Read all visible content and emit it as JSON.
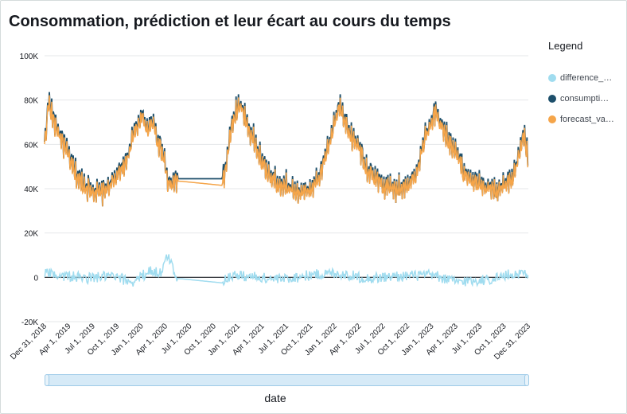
{
  "chart_data": {
    "type": "line",
    "title": "Consommation, prédiction et leur écart au cours du temps",
    "xlabel": "date",
    "ylabel": "",
    "ylim": [
      -20000,
      100000
    ],
    "y_ticks": [
      -20000,
      0,
      20000,
      40000,
      60000,
      80000,
      100000
    ],
    "y_tick_labels": [
      "-20K",
      "0",
      "20K",
      "40K",
      "60K",
      "80K",
      "100K"
    ],
    "x_range": [
      "2018-12-31",
      "2023-12-31"
    ],
    "x_tick_labels": [
      "Dec 31, 2018",
      "Apr 1, 2019",
      "Jul 1, 2019",
      "Oct 1, 2019",
      "Jan 1, 2020",
      "Apr 1, 2020",
      "Jul 1, 2020",
      "Oct 1, 2020",
      "Jan 1, 2021",
      "Apr 1, 2021",
      "Jul 1, 2021",
      "Oct 1, 2021",
      "Jan 1, 2022",
      "Apr 1, 2022",
      "Jul 1, 2022",
      "Oct 1, 2022",
      "Jan 1, 2023",
      "Apr 1, 2023",
      "Jul 1, 2023",
      "Oct 1, 2023",
      "Dec 31, 2023"
    ],
    "grid": true,
    "legend_position": "right",
    "legend_title": "Legend",
    "gap": [
      "2020-05-15",
      "2020-11-01"
    ],
    "series": [
      {
        "name": "difference_…",
        "color": "#a0dcef",
        "x": [
          "2019-01-01",
          "2019-03-01",
          "2019-06-01",
          "2019-09-01",
          "2019-12-01",
          "2020-02-01",
          "2020-03-15",
          "2020-04-10",
          "2020-05-15",
          "2020-11-01",
          "2020-12-01",
          "2021-02-01",
          "2021-06-01",
          "2021-10-01",
          "2022-01-01",
          "2022-05-01",
          "2022-09-01",
          "2023-01-01",
          "2023-04-01",
          "2023-08-01",
          "2023-11-01",
          "2023-12-31"
        ],
        "values": [
          2000,
          1000,
          -500,
          500,
          -2000,
          3000,
          2000,
          10000,
          -500,
          -2500,
          1000,
          500,
          -1000,
          1000,
          2000,
          -500,
          500,
          1000,
          -2000,
          -1000,
          1500,
          2000
        ]
      },
      {
        "name": "consumpti…",
        "color": "#1d4f6b",
        "x": [
          "2018-12-31",
          "2019-01-15",
          "2019-02-01",
          "2019-03-01",
          "2019-04-01",
          "2019-05-01",
          "2019-06-01",
          "2019-07-01",
          "2019-08-01",
          "2019-09-01",
          "2019-10-01",
          "2019-11-01",
          "2019-12-01",
          "2020-01-01",
          "2020-01-20",
          "2020-02-15",
          "2020-03-01",
          "2020-03-20",
          "2020-04-15",
          "2020-05-15",
          "2020-11-01",
          "2020-11-15",
          "2020-12-01",
          "2020-12-20",
          "2021-01-10",
          "2021-02-01",
          "2021-03-01",
          "2021-04-01",
          "2021-05-01",
          "2021-06-01",
          "2021-07-01",
          "2021-08-01",
          "2021-09-01",
          "2021-10-01",
          "2021-11-01",
          "2021-12-01",
          "2021-12-20",
          "2022-01-15",
          "2022-02-01",
          "2022-03-01",
          "2022-04-01",
          "2022-05-01",
          "2022-06-01",
          "2022-07-01",
          "2022-08-01",
          "2022-09-01",
          "2022-10-01",
          "2022-11-01",
          "2022-12-01",
          "2022-12-20",
          "2023-01-15",
          "2023-02-01",
          "2023-03-01",
          "2023-04-01",
          "2023-05-01",
          "2023-06-01",
          "2023-07-01",
          "2023-08-01",
          "2023-09-01",
          "2023-10-01",
          "2023-11-01",
          "2023-12-01",
          "2023-12-15",
          "2023-12-31"
        ],
        "values": [
          60000,
          80000,
          72000,
          64000,
          55000,
          46000,
          42000,
          40000,
          38000,
          42000,
          46000,
          52000,
          64000,
          74000,
          68000,
          70000,
          62000,
          58000,
          42000,
          44500,
          44500,
          52000,
          65000,
          75000,
          79000,
          70000,
          62000,
          52000,
          46000,
          43000,
          42000,
          40000,
          38000,
          41000,
          45000,
          58000,
          65000,
          78000,
          72000,
          64000,
          60000,
          49000,
          45000,
          42000,
          40000,
          40500,
          43000,
          47000,
          62000,
          68000,
          75000,
          70000,
          63000,
          58000,
          48000,
          44000,
          42000,
          41000,
          40000,
          42000,
          44000,
          58000,
          67000,
          52000
        ]
      },
      {
        "name": "forecast_va…",
        "color": "#f5a54a",
        "x": [
          "2018-12-31",
          "2019-01-15",
          "2019-02-01",
          "2019-03-01",
          "2019-04-01",
          "2019-05-01",
          "2019-06-01",
          "2019-07-01",
          "2019-08-01",
          "2019-09-01",
          "2019-10-01",
          "2019-11-01",
          "2019-12-01",
          "2020-01-01",
          "2020-01-20",
          "2020-02-15",
          "2020-03-01",
          "2020-03-20",
          "2020-04-15",
          "2020-05-15",
          "2020-11-01",
          "2020-11-15",
          "2020-12-01",
          "2020-12-20",
          "2021-01-10",
          "2021-02-01",
          "2021-03-01",
          "2021-04-01",
          "2021-05-01",
          "2021-06-01",
          "2021-07-01",
          "2021-08-01",
          "2021-09-01",
          "2021-10-01",
          "2021-11-01",
          "2021-12-01",
          "2021-12-20",
          "2022-01-15",
          "2022-02-01",
          "2022-03-01",
          "2022-04-01",
          "2022-05-01",
          "2022-06-01",
          "2022-07-01",
          "2022-08-01",
          "2022-09-01",
          "2022-10-01",
          "2022-11-01",
          "2022-12-01",
          "2022-12-20",
          "2023-01-15",
          "2023-02-01",
          "2023-03-01",
          "2023-04-01",
          "2023-05-01",
          "2023-06-01",
          "2023-07-01",
          "2023-08-01",
          "2023-09-01",
          "2023-10-01",
          "2023-11-01",
          "2023-12-01",
          "2023-12-15",
          "2023-12-31"
        ],
        "values": [
          59000,
          79000,
          71000,
          63000,
          54000,
          45000,
          41000,
          39000,
          37500,
          41000,
          45000,
          51000,
          63000,
          73000,
          67000,
          69000,
          61000,
          57000,
          41000,
          43500,
          41500,
          51000,
          64000,
          74000,
          78000,
          69000,
          61000,
          51000,
          45000,
          42000,
          41000,
          39000,
          37500,
          40000,
          44000,
          57000,
          64000,
          77000,
          71000,
          63000,
          59000,
          48000,
          44000,
          41000,
          39500,
          40000,
          42000,
          46000,
          61000,
          67000,
          74000,
          69000,
          62000,
          57000,
          47000,
          43000,
          41000,
          40000,
          39500,
          41000,
          43000,
          57000,
          66000,
          51000
        ]
      }
    ]
  }
}
